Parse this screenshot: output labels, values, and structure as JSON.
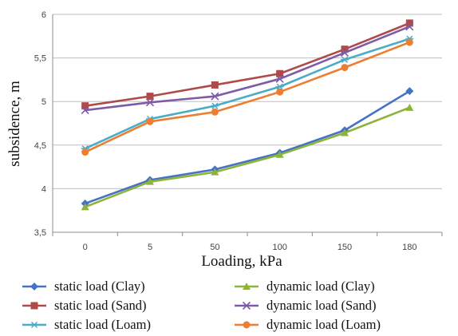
{
  "chart_data": {
    "type": "line",
    "categories": [
      "0",
      "5",
      "50",
      "100",
      "150",
      "180"
    ],
    "xlabel": "Loading, kPa",
    "ylabel": "subsidence, m",
    "ylim": [
      3.5,
      6
    ],
    "yticks": [
      "3,5",
      "4",
      "4,5",
      "5",
      "5,5",
      "6"
    ],
    "grid": "horizontal",
    "legend_position": "bottom",
    "series": [
      {
        "name": "static load (Clay)",
        "color": "#4472C4",
        "marker": "diamond",
        "values": [
          3.83,
          4.1,
          4.22,
          4.41,
          4.67,
          5.12
        ]
      },
      {
        "name": "dynamic load (Clay)",
        "color": "#8EB33A",
        "marker": "triangle",
        "values": [
          3.79,
          4.08,
          4.19,
          4.39,
          4.64,
          4.93
        ]
      },
      {
        "name": "static load (Sand)",
        "color": "#B04A4A",
        "marker": "square",
        "values": [
          4.95,
          5.06,
          5.19,
          5.32,
          5.6,
          5.9
        ]
      },
      {
        "name": "dynamic load (Sand)",
        "color": "#7D5BA6",
        "marker": "x",
        "values": [
          4.9,
          4.99,
          5.06,
          5.26,
          5.56,
          5.86
        ]
      },
      {
        "name": "static load (Loam)",
        "color": "#4BACC6",
        "marker": "asterisk",
        "values": [
          4.46,
          4.8,
          4.95,
          5.17,
          5.48,
          5.72
        ]
      },
      {
        "name": "dynamic load (Loam)",
        "color": "#ED7D31",
        "marker": "circle",
        "values": [
          4.42,
          4.77,
          4.88,
          5.11,
          5.39,
          5.68
        ]
      }
    ]
  }
}
